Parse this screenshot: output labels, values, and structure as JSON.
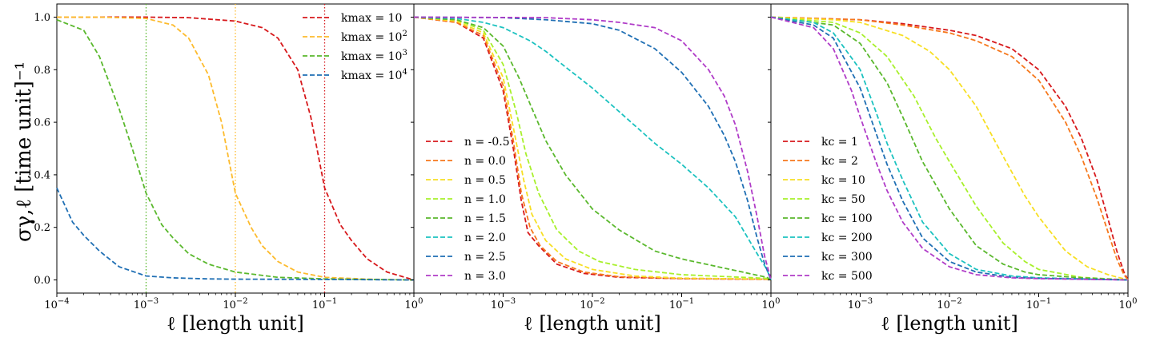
{
  "chart_data": [
    {
      "type": "line",
      "xscale": "log",
      "xlim": [
        0.0001,
        1
      ],
      "ylim": [
        -0.05,
        1.05
      ],
      "yticks": [
        "0.0",
        "0.2",
        "0.4",
        "0.6",
        "0.8",
        "1.0"
      ],
      "xticks": [
        "10^-4",
        "10^-3",
        "10^-2",
        "10^-1",
        "10^0"
      ],
      "xlabel": "ℓ [length unit]",
      "ylabel": "σγ,ℓ [time unit]⁻¹",
      "legend_position": "top-right",
      "vlines": [
        {
          "x": 0.1,
          "color": "#d7191c"
        },
        {
          "x": 0.01,
          "color": "#fdbb2d"
        },
        {
          "x": 0.001,
          "color": "#5ab82d"
        }
      ],
      "series": [
        {
          "name": "kmax = 10",
          "color": "#d7191c",
          "x": [
            0.0001,
            0.0003,
            0.001,
            0.003,
            0.01,
            0.02,
            0.03,
            0.05,
            0.07,
            0.1,
            0.15,
            0.2,
            0.3,
            0.5,
            1
          ],
          "y": [
            1.0,
            1.0,
            1.0,
            0.998,
            0.985,
            0.96,
            0.92,
            0.8,
            0.62,
            0.35,
            0.21,
            0.15,
            0.08,
            0.03,
            0.0
          ]
        },
        {
          "name": "kmax = 10^2",
          "color": "#fdbb2d",
          "x": [
            0.0001,
            0.0003,
            0.001,
            0.002,
            0.003,
            0.005,
            0.007,
            0.01,
            0.015,
            0.02,
            0.03,
            0.05,
            0.1,
            0.3,
            1
          ],
          "y": [
            1.0,
            1.0,
            0.995,
            0.97,
            0.92,
            0.78,
            0.6,
            0.33,
            0.2,
            0.13,
            0.07,
            0.03,
            0.01,
            0.003,
            0.0
          ]
        },
        {
          "name": "kmax = 10^3",
          "color": "#5ab82d",
          "x": [
            0.0001,
            0.0002,
            0.0003,
            0.0005,
            0.0007,
            0.001,
            0.0015,
            0.002,
            0.003,
            0.005,
            0.01,
            0.03,
            0.1,
            1
          ],
          "y": [
            0.99,
            0.95,
            0.85,
            0.65,
            0.5,
            0.33,
            0.21,
            0.16,
            0.1,
            0.06,
            0.03,
            0.01,
            0.004,
            0.0
          ]
        },
        {
          "name": "kmax = 10^4",
          "color": "#1f6fb4",
          "x": [
            0.0001,
            0.00015,
            0.0002,
            0.0003,
            0.0005,
            0.001,
            0.002,
            0.005,
            0.01,
            0.1,
            1
          ],
          "y": [
            0.35,
            0.22,
            0.17,
            0.11,
            0.05,
            0.015,
            0.008,
            0.004,
            0.003,
            0.002,
            0.0
          ]
        }
      ]
    },
    {
      "type": "line",
      "xscale": "log",
      "xlim": [
        0.0001,
        1
      ],
      "ylim": [
        -0.05,
        1.05
      ],
      "xticks": [
        "10^-3",
        "10^-2",
        "10^-1",
        "10^0"
      ],
      "xlabel": "ℓ [length unit]",
      "legend_position": "center-left",
      "series": [
        {
          "name": "n = -0.5",
          "color": "#d7191c",
          "x": [
            0.0001,
            0.0003,
            0.0006,
            0.001,
            0.0013,
            0.0016,
            0.0019,
            0.0025,
            0.004,
            0.008,
            0.02,
            0.1,
            0.9,
            1
          ],
          "y": [
            1.0,
            0.98,
            0.92,
            0.72,
            0.5,
            0.3,
            0.18,
            0.13,
            0.06,
            0.025,
            0.01,
            0.005,
            0.002,
            0.0
          ]
        },
        {
          "name": "n = 0.0",
          "color": "#f6781c",
          "x": [
            0.0001,
            0.0003,
            0.0006,
            0.001,
            0.0013,
            0.0016,
            0.002,
            0.0026,
            0.004,
            0.008,
            0.02,
            0.1,
            0.9,
            1
          ],
          "y": [
            1.0,
            0.98,
            0.93,
            0.74,
            0.53,
            0.33,
            0.2,
            0.13,
            0.07,
            0.03,
            0.012,
            0.005,
            0.003,
            0.0
          ]
        },
        {
          "name": "n = 0.5",
          "color": "#f7df23",
          "x": [
            0.0001,
            0.0003,
            0.0006,
            0.001,
            0.0013,
            0.0017,
            0.0021,
            0.003,
            0.005,
            0.01,
            0.03,
            0.1,
            0.9,
            1
          ],
          "y": [
            1.0,
            0.985,
            0.94,
            0.77,
            0.58,
            0.38,
            0.25,
            0.15,
            0.08,
            0.04,
            0.015,
            0.007,
            0.003,
            0.0
          ]
        },
        {
          "name": "n = 1.0",
          "color": "#a8f02b",
          "x": [
            0.0001,
            0.0003,
            0.0006,
            0.001,
            0.0014,
            0.0018,
            0.0025,
            0.004,
            0.007,
            0.012,
            0.03,
            0.1,
            0.9,
            1
          ],
          "y": [
            1.0,
            0.99,
            0.95,
            0.82,
            0.64,
            0.48,
            0.33,
            0.19,
            0.11,
            0.07,
            0.04,
            0.02,
            0.006,
            0.0
          ]
        },
        {
          "name": "n = 1.5",
          "color": "#5ab82d",
          "x": [
            0.0001,
            0.0003,
            0.0006,
            0.001,
            0.0015,
            0.002,
            0.003,
            0.005,
            0.01,
            0.02,
            0.05,
            0.1,
            0.3,
            0.9,
            1
          ],
          "y": [
            1.0,
            0.99,
            0.96,
            0.89,
            0.77,
            0.67,
            0.53,
            0.4,
            0.27,
            0.19,
            0.11,
            0.08,
            0.045,
            0.01,
            0.0
          ]
        },
        {
          "name": "n = 2.0",
          "color": "#1cc2c0",
          "x": [
            0.0001,
            0.0003,
            0.0006,
            0.001,
            0.002,
            0.003,
            0.005,
            0.01,
            0.02,
            0.05,
            0.1,
            0.2,
            0.4,
            0.7,
            0.9,
            1
          ],
          "y": [
            1.0,
            0.995,
            0.98,
            0.96,
            0.91,
            0.87,
            0.81,
            0.73,
            0.64,
            0.52,
            0.44,
            0.35,
            0.24,
            0.1,
            0.04,
            0.0
          ]
        },
        {
          "name": "n = 2.5",
          "color": "#1f6fb4",
          "x": [
            0.0001,
            0.001,
            0.003,
            0.01,
            0.02,
            0.05,
            0.1,
            0.2,
            0.3,
            0.4,
            0.55,
            0.7,
            0.85,
            0.95,
            1
          ],
          "y": [
            1.0,
            0.998,
            0.99,
            0.975,
            0.95,
            0.88,
            0.79,
            0.66,
            0.55,
            0.45,
            0.3,
            0.16,
            0.06,
            0.02,
            0.0
          ]
        },
        {
          "name": "n = 3.0",
          "color": "#b03cc8",
          "x": [
            0.0001,
            0.003,
            0.01,
            0.02,
            0.05,
            0.1,
            0.2,
            0.3,
            0.4,
            0.55,
            0.7,
            0.85,
            0.95,
            1
          ],
          "y": [
            1.0,
            0.998,
            0.99,
            0.98,
            0.96,
            0.91,
            0.8,
            0.7,
            0.59,
            0.41,
            0.24,
            0.09,
            0.03,
            0.0
          ]
        }
      ]
    },
    {
      "type": "line",
      "xscale": "log",
      "xlim": [
        0.0001,
        1
      ],
      "ylim": [
        -0.05,
        1.05
      ],
      "xticks": [
        "10^-3",
        "10^-2",
        "10^-1",
        "10^0"
      ],
      "xlabel": "ℓ [length unit]",
      "legend_position": "center-left",
      "series": [
        {
          "name": "kc = 1",
          "color": "#d7191c",
          "x": [
            0.0001,
            0.001,
            0.003,
            0.01,
            0.02,
            0.05,
            0.1,
            0.2,
            0.3,
            0.45,
            0.6,
            0.75,
            0.9,
            1
          ],
          "y": [
            1.0,
            0.99,
            0.975,
            0.95,
            0.93,
            0.88,
            0.8,
            0.66,
            0.54,
            0.38,
            0.23,
            0.11,
            0.03,
            0.0
          ]
        },
        {
          "name": "kc = 2",
          "color": "#f6781c",
          "x": [
            0.0001,
            0.001,
            0.003,
            0.01,
            0.02,
            0.05,
            0.1,
            0.2,
            0.3,
            0.45,
            0.6,
            0.75,
            0.9,
            1
          ],
          "y": [
            1.0,
            0.99,
            0.97,
            0.94,
            0.91,
            0.85,
            0.76,
            0.6,
            0.47,
            0.31,
            0.18,
            0.08,
            0.02,
            0.0
          ]
        },
        {
          "name": "kc = 10",
          "color": "#f7df23",
          "x": [
            0.0001,
            0.0005,
            0.001,
            0.003,
            0.006,
            0.01,
            0.02,
            0.04,
            0.07,
            0.1,
            0.2,
            0.35,
            0.6,
            1
          ],
          "y": [
            1.0,
            0.99,
            0.98,
            0.93,
            0.87,
            0.8,
            0.66,
            0.47,
            0.32,
            0.24,
            0.11,
            0.05,
            0.02,
            0.0
          ]
        },
        {
          "name": "kc = 50",
          "color": "#a8f02b",
          "x": [
            0.0001,
            0.0005,
            0.001,
            0.002,
            0.004,
            0.007,
            0.01,
            0.02,
            0.04,
            0.07,
            0.1,
            0.3,
            1
          ],
          "y": [
            1.0,
            0.98,
            0.94,
            0.85,
            0.7,
            0.54,
            0.45,
            0.28,
            0.14,
            0.07,
            0.04,
            0.01,
            0.0
          ]
        },
        {
          "name": "kc = 100",
          "color": "#5ab82d",
          "x": [
            0.0001,
            0.0005,
            0.001,
            0.002,
            0.003,
            0.005,
            0.01,
            0.02,
            0.04,
            0.07,
            0.1,
            0.3,
            1
          ],
          "y": [
            1.0,
            0.97,
            0.9,
            0.75,
            0.62,
            0.45,
            0.27,
            0.13,
            0.06,
            0.03,
            0.02,
            0.008,
            0.0
          ]
        },
        {
          "name": "kc = 200",
          "color": "#1cc2c0",
          "x": [
            0.0001,
            0.0003,
            0.0005,
            0.001,
            0.0015,
            0.002,
            0.003,
            0.005,
            0.01,
            0.02,
            0.05,
            0.1,
            1
          ],
          "y": [
            1.0,
            0.98,
            0.94,
            0.8,
            0.64,
            0.52,
            0.38,
            0.22,
            0.1,
            0.04,
            0.015,
            0.008,
            0.0
          ]
        },
        {
          "name": "kc = 300",
          "color": "#1f6fb4",
          "x": [
            0.0001,
            0.0003,
            0.0005,
            0.001,
            0.0015,
            0.002,
            0.003,
            0.005,
            0.01,
            0.02,
            0.05,
            0.1,
            1
          ],
          "y": [
            1.0,
            0.97,
            0.92,
            0.73,
            0.56,
            0.44,
            0.3,
            0.16,
            0.07,
            0.03,
            0.01,
            0.006,
            0.0
          ]
        },
        {
          "name": "kc = 500",
          "color": "#b03cc8",
          "x": [
            0.0001,
            0.0003,
            0.0005,
            0.0008,
            0.001,
            0.0015,
            0.002,
            0.003,
            0.005,
            0.01,
            0.02,
            0.05,
            0.1,
            1
          ],
          "y": [
            1.0,
            0.96,
            0.88,
            0.72,
            0.62,
            0.45,
            0.34,
            0.22,
            0.12,
            0.05,
            0.02,
            0.008,
            0.005,
            0.0
          ]
        }
      ]
    }
  ]
}
